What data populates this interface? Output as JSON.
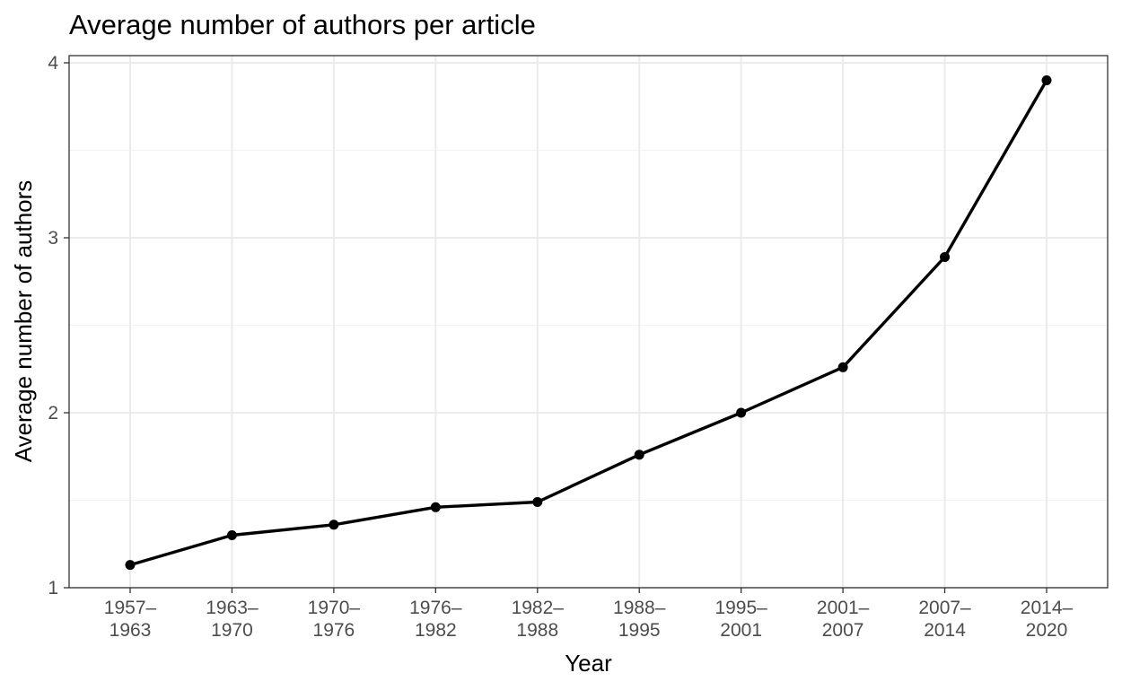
{
  "chart_data": {
    "type": "line",
    "title": "Average number of authors per article",
    "xlabel": "Year",
    "ylabel": "Average number of authors",
    "categories": [
      [
        "1957–",
        "1963"
      ],
      [
        "1963–",
        "1970"
      ],
      [
        "1970–",
        "1976"
      ],
      [
        "1976–",
        "1982"
      ],
      [
        "1982–",
        "1988"
      ],
      [
        "1988–",
        "1995"
      ],
      [
        "1995–",
        "2001"
      ],
      [
        "2001–",
        "2007"
      ],
      [
        "2007–",
        "2014"
      ],
      [
        "2014–",
        "2020"
      ]
    ],
    "series": [
      {
        "values": [
          1.13,
          1.3,
          1.36,
          1.46,
          1.49,
          1.76,
          2.0,
          2.26,
          2.89,
          3.9
        ]
      }
    ],
    "ylim": [
      1,
      4
    ],
    "yticks": [
      1,
      2,
      3,
      4
    ],
    "grid": true,
    "legend": "none",
    "colors": {
      "line": "#000000",
      "grid": "#ebebeb",
      "border": "#333333",
      "tick_text": "#4d4d4d"
    }
  }
}
